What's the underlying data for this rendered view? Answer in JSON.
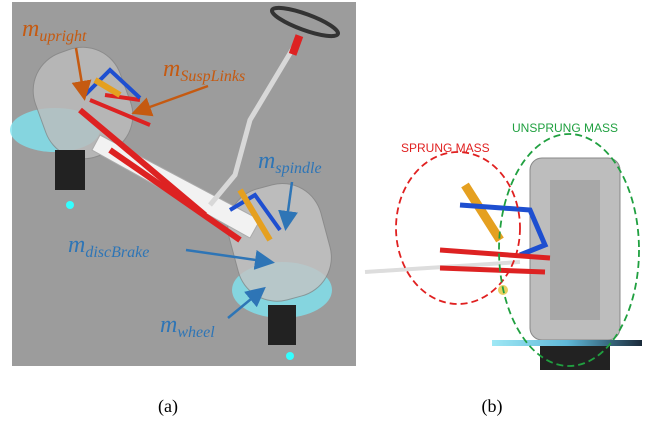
{
  "panel_a": {
    "labels": [
      {
        "symbol": "m",
        "subscript": "upright"
      },
      {
        "symbol": "m",
        "subscript": "SuspLinks"
      },
      {
        "symbol": "m",
        "subscript": "spindle"
      },
      {
        "symbol": "m",
        "subscript": "discBrake"
      },
      {
        "symbol": "m",
        "subscript": "wheel"
      }
    ],
    "caption": "(a)"
  },
  "panel_b": {
    "sprung": "SPRUNG MASS",
    "unsprung": "UNSPRUNG MASS",
    "caption": "(b)"
  }
}
